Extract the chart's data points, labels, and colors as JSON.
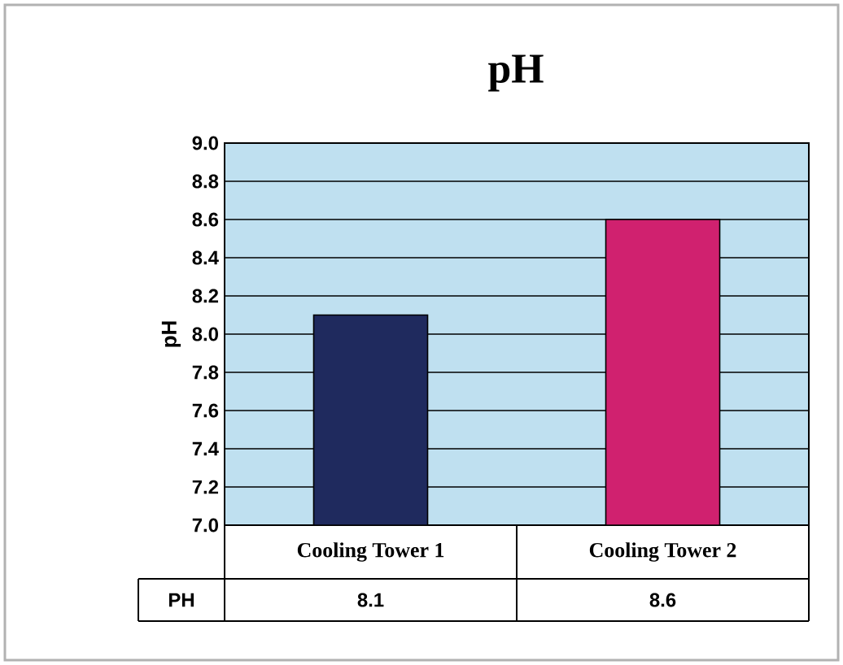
{
  "chart_data": {
    "type": "bar",
    "title": "pH",
    "ylabel": "pH",
    "categories": [
      "Cooling Tower 1",
      "Cooling Tower 2"
    ],
    "series": [
      {
        "name": "PH",
        "colors": [
          "#1f2a5e",
          "#d0216f"
        ],
        "values": [
          8.1,
          8.6
        ]
      }
    ],
    "ylim": [
      7.0,
      9.0
    ],
    "yticks": [
      {
        "value": 7.0,
        "label": "7.0"
      },
      {
        "value": 7.2,
        "label": "7.2"
      },
      {
        "value": 7.4,
        "label": "7.4"
      },
      {
        "value": 7.6,
        "label": "7.6"
      },
      {
        "value": 7.8,
        "label": "7.8"
      },
      {
        "value": 8.0,
        "label": "8.0"
      },
      {
        "value": 8.2,
        "label": "8.2"
      },
      {
        "value": 8.4,
        "label": "8.4"
      },
      {
        "value": 8.6,
        "label": "8.6"
      },
      {
        "value": 8.8,
        "label": "8.8"
      },
      {
        "value": 9.0,
        "label": "9.0"
      }
    ],
    "grid": "y",
    "legend": "bottom",
    "data_labels": true
  }
}
